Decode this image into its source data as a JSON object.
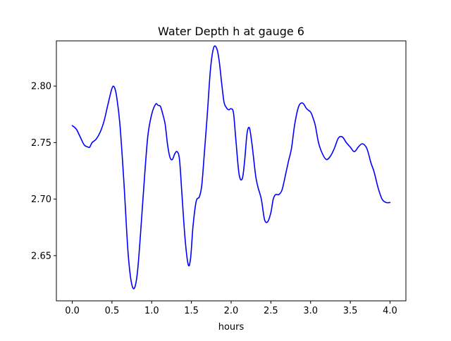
{
  "chart_data": {
    "type": "line",
    "title": "Water Depth h at gauge 6",
    "xlabel": "hours",
    "ylabel": "",
    "xlim": [
      -0.2,
      4.2
    ],
    "ylim": [
      2.61,
      2.84
    ],
    "xticks": [
      0.0,
      0.5,
      1.0,
      1.5,
      2.0,
      2.5,
      3.0,
      3.5,
      4.0
    ],
    "xtick_labels": [
      "0.0",
      "0.5",
      "1.0",
      "1.5",
      "2.0",
      "2.5",
      "3.0",
      "3.5",
      "4.0"
    ],
    "yticks": [
      2.65,
      2.7,
      2.75,
      2.8
    ],
    "ytick_labels": [
      "2.65",
      "2.70",
      "2.75",
      "2.80"
    ],
    "grid": false,
    "legend": "none",
    "series": [
      {
        "color": "#0000ff",
        "x": [
          0.0,
          0.05,
          0.1,
          0.15,
          0.2,
          0.22,
          0.25,
          0.3,
          0.35,
          0.4,
          0.45,
          0.5,
          0.53,
          0.56,
          0.6,
          0.65,
          0.7,
          0.74,
          0.78,
          0.82,
          0.86,
          0.9,
          0.95,
          1.0,
          1.05,
          1.08,
          1.11,
          1.14,
          1.17,
          1.2,
          1.23,
          1.26,
          1.29,
          1.32,
          1.35,
          1.38,
          1.42,
          1.46,
          1.49,
          1.52,
          1.56,
          1.6,
          1.63,
          1.66,
          1.7,
          1.74,
          1.78,
          1.82,
          1.85,
          1.88,
          1.91,
          1.94,
          1.97,
          2.0,
          2.03,
          2.06,
          2.1,
          2.14,
          2.17,
          2.2,
          2.23,
          2.26,
          2.28,
          2.31,
          2.34,
          2.38,
          2.42,
          2.46,
          2.5,
          2.53,
          2.56,
          2.6,
          2.64,
          2.68,
          2.72,
          2.76,
          2.8,
          2.85,
          2.9,
          2.95,
          3.0,
          3.03,
          3.06,
          3.1,
          3.15,
          3.2,
          3.25,
          3.3,
          3.35,
          3.4,
          3.45,
          3.5,
          3.55,
          3.6,
          3.65,
          3.7,
          3.73,
          3.76,
          3.8,
          3.85,
          3.9,
          3.95,
          4.0
        ],
        "y": [
          2.765,
          2.762,
          2.755,
          2.748,
          2.746,
          2.746,
          2.75,
          2.753,
          2.759,
          2.769,
          2.784,
          2.798,
          2.799,
          2.79,
          2.766,
          2.715,
          2.655,
          2.628,
          2.621,
          2.635,
          2.67,
          2.71,
          2.755,
          2.775,
          2.784,
          2.783,
          2.782,
          2.775,
          2.766,
          2.748,
          2.737,
          2.735,
          2.74,
          2.742,
          2.735,
          2.705,
          2.665,
          2.642,
          2.648,
          2.676,
          2.698,
          2.702,
          2.712,
          2.738,
          2.775,
          2.815,
          2.834,
          2.833,
          2.822,
          2.803,
          2.786,
          2.781,
          2.779,
          2.78,
          2.776,
          2.752,
          2.722,
          2.718,
          2.734,
          2.758,
          2.763,
          2.75,
          2.738,
          2.72,
          2.71,
          2.7,
          2.682,
          2.68,
          2.688,
          2.7,
          2.704,
          2.704,
          2.708,
          2.72,
          2.733,
          2.745,
          2.766,
          2.782,
          2.785,
          2.78,
          2.777,
          2.772,
          2.765,
          2.75,
          2.74,
          2.735,
          2.738,
          2.745,
          2.754,
          2.755,
          2.75,
          2.746,
          2.742,
          2.746,
          2.749,
          2.746,
          2.74,
          2.732,
          2.724,
          2.71,
          2.7,
          2.697,
          2.697
        ]
      }
    ]
  }
}
